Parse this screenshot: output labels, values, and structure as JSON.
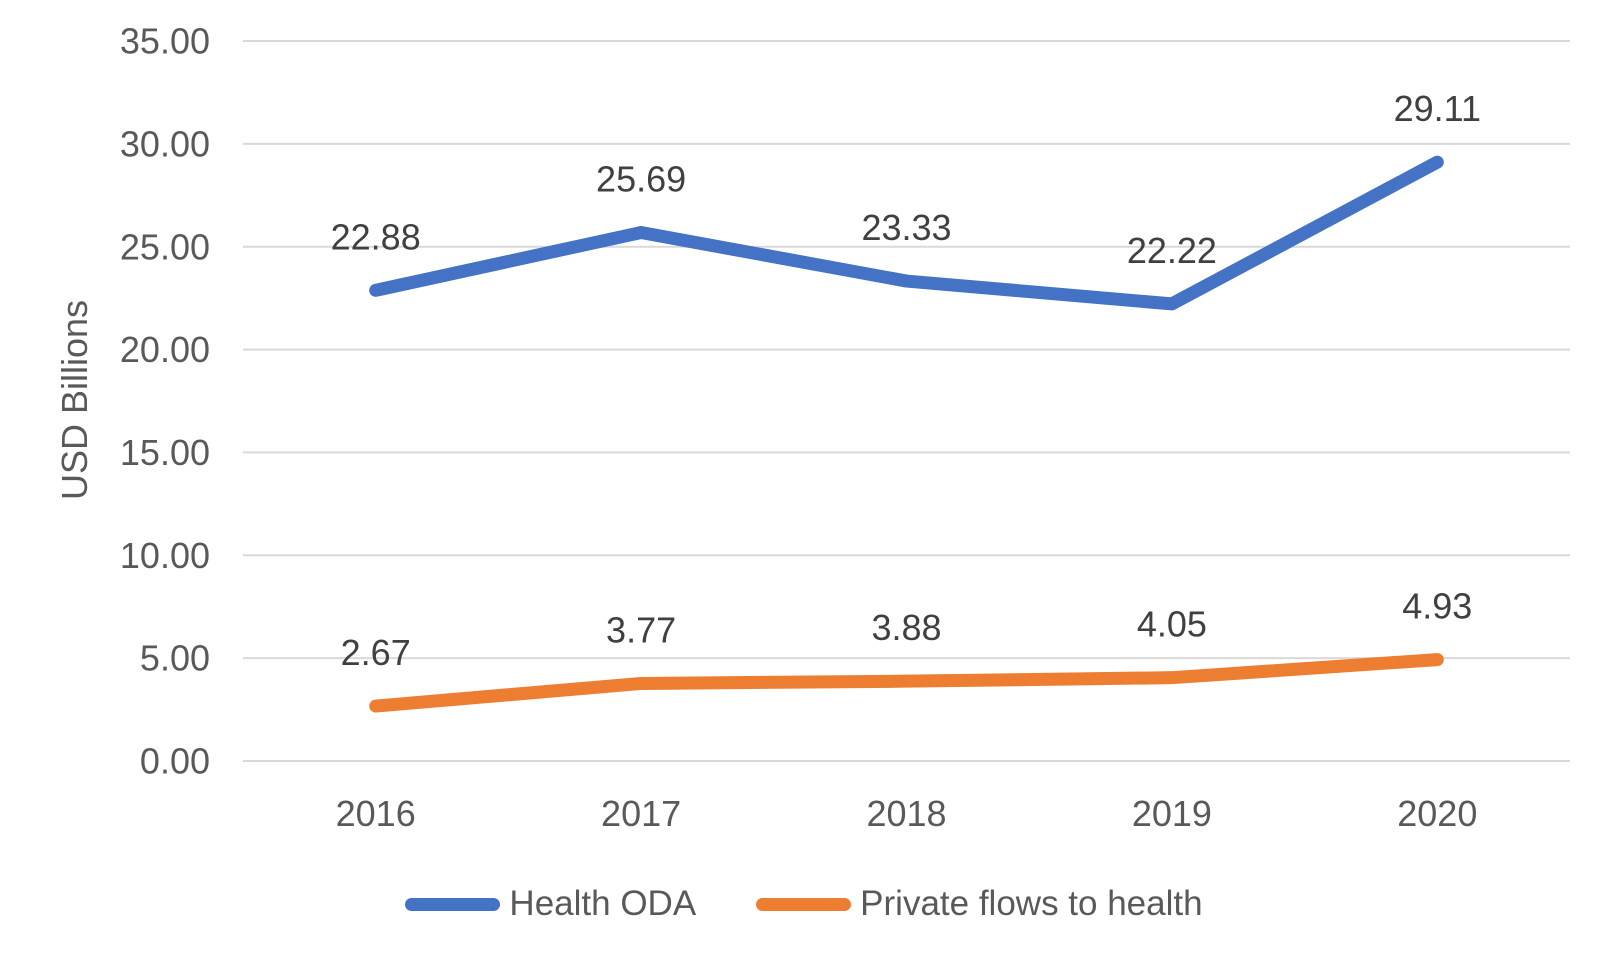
{
  "colors": {
    "background": "#FFFFFF",
    "gridline": "#D9D9D9",
    "axis_text": "#595959",
    "data_label_text": "#404040",
    "series_blue": "#4472C4",
    "series_orange": "#ED7D31"
  },
  "chart_data": {
    "type": "line",
    "title": "",
    "xlabel": "",
    "ylabel": "USD Billions",
    "categories": [
      "2016",
      "2017",
      "2018",
      "2019",
      "2020"
    ],
    "series": [
      {
        "name": "Health ODA",
        "color": "#4472C4",
        "values": [
          22.88,
          25.69,
          23.33,
          22.22,
          29.11
        ],
        "data_labels": [
          "22.88",
          "25.69",
          "23.33",
          "22.22",
          "29.11"
        ]
      },
      {
        "name": "Private flows to health",
        "color": "#ED7D31",
        "values": [
          2.67,
          3.77,
          3.88,
          4.05,
          4.93
        ],
        "data_labels": [
          "2.67",
          "3.77",
          "3.88",
          "4.05",
          "4.93"
        ]
      }
    ],
    "ylim": [
      0,
      35
    ],
    "ytick_interval": 5,
    "ytick_labels": [
      "0.00",
      "5.00",
      "10.00",
      "15.00",
      "20.00",
      "25.00",
      "30.00",
      "35.00"
    ],
    "grid": true,
    "legend_position": "bottom"
  }
}
